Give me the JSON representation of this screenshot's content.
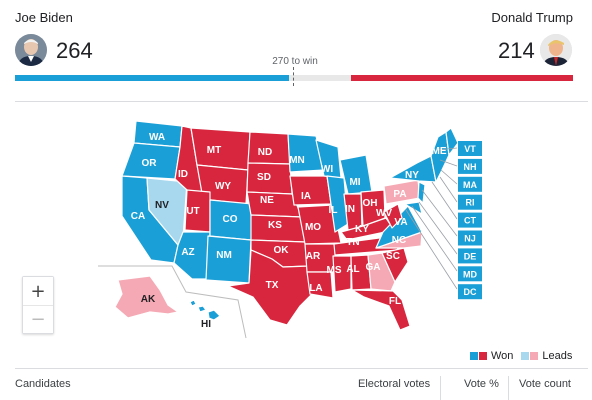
{
  "candidates": {
    "left": {
      "name": "Joe Biden",
      "electoral_votes": "264",
      "color": "#1a9fd6"
    },
    "right": {
      "name": "Donald Trump",
      "electoral_votes": "214",
      "color": "#d7263d"
    }
  },
  "threshold_label": "270 to win",
  "progress": {
    "total": 538,
    "left": 264,
    "right": 214,
    "threshold": 270
  },
  "colors": {
    "won_dem": "#1a9fd6",
    "won_rep": "#d7263d",
    "lead_dem": "#a8d8ee",
    "lead_rep": "#f5a9b4"
  },
  "states": {
    "WA": "WA",
    "OR": "OR",
    "CA": "CA",
    "NV": "NV",
    "ID": "ID",
    "MT": "MT",
    "WY": "WY",
    "UT": "UT",
    "AZ": "AZ",
    "CO": "CO",
    "NM": "NM",
    "ND": "ND",
    "SD": "SD",
    "NE": "NE",
    "KS": "KS",
    "OK": "OK",
    "TX": "TX",
    "MN": "MN",
    "IA": "IA",
    "MO": "MO",
    "AR": "AR",
    "LA": "LA",
    "WI": "WI",
    "IL": "IL",
    "MI": "MI",
    "IN": "IN",
    "OH": "OH",
    "KY": "KY",
    "TN": "TN",
    "MS": "MS",
    "AL": "AL",
    "GA": "GA",
    "FL": "FL",
    "SC": "SC",
    "NC": "NC",
    "VA": "VA",
    "WV": "WV",
    "PA": "PA",
    "NY": "NY",
    "ME": "ME",
    "AK": "AK",
    "HI": "HI"
  },
  "small_states": [
    "VT",
    "NH",
    "MA",
    "RI",
    "CT",
    "NJ",
    "DE",
    "MD",
    "DC"
  ],
  "zoom": {
    "in": "+",
    "out": "−"
  },
  "legend": {
    "won": "Won",
    "leads": "Leads"
  },
  "table_header": {
    "candidates": "Candidates",
    "electoral_votes": "Electoral votes",
    "vote_pct": "Vote %",
    "vote_count": "Vote count"
  }
}
